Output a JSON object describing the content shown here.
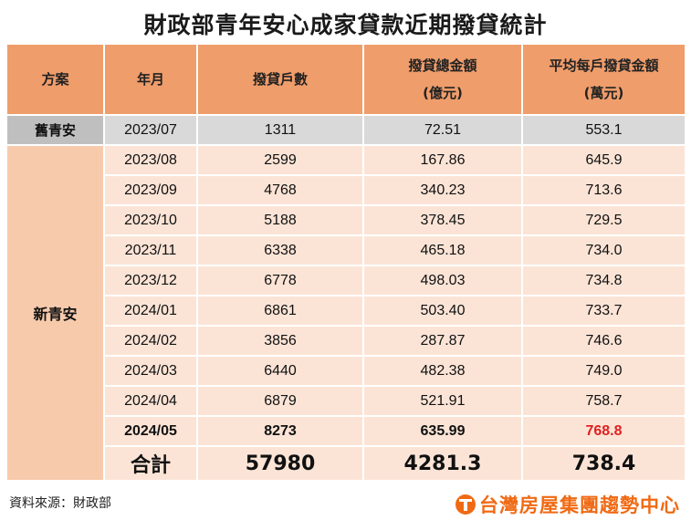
{
  "title": "財政部青年安心成家貸款近期撥貸統計",
  "table": {
    "headers": {
      "plan": "方案",
      "month": "年月",
      "households": "撥貸戶數",
      "total_amount": "撥貸總金額",
      "total_amount_unit": "(億元)",
      "avg_amount": "平均每戶撥貸金額",
      "avg_amount_unit": "(萬元)"
    },
    "old_plan": {
      "label": "舊青安",
      "row": {
        "month": "2023/07",
        "households": "1311",
        "total": "72.51",
        "avg": "553.1"
      }
    },
    "new_plan_label": "新青安",
    "rows": [
      {
        "month": "2023/08",
        "households": "2599",
        "total": "167.86",
        "avg": "645.9"
      },
      {
        "month": "2023/09",
        "households": "4768",
        "total": "340.23",
        "avg": "713.6"
      },
      {
        "month": "2023/10",
        "households": "5188",
        "total": "378.45",
        "avg": "729.5"
      },
      {
        "month": "2023/11",
        "households": "6338",
        "total": "465.18",
        "avg": "734.0"
      },
      {
        "month": "2023/12",
        "households": "6778",
        "total": "498.03",
        "avg": "734.8"
      },
      {
        "month": "2024/01",
        "households": "6861",
        "total": "503.40",
        "avg": "733.7"
      },
      {
        "month": "2024/02",
        "households": "3856",
        "total": "287.87",
        "avg": "746.6"
      },
      {
        "month": "2024/03",
        "households": "6440",
        "total": "482.38",
        "avg": "749.0"
      },
      {
        "month": "2024/04",
        "households": "6879",
        "total": "521.91",
        "avg": "758.7"
      },
      {
        "month": "2024/05",
        "households": "8273",
        "total": "635.99",
        "avg": "768.8"
      }
    ],
    "total_row": {
      "label": "合計",
      "households": "57980",
      "total": "4281.3",
      "avg": "738.4"
    }
  },
  "colors": {
    "header": "#ef9d6b",
    "new_plan_cell": "#f7caac",
    "row_bg": "#fbe4d6",
    "old_row": "#d9d9d9",
    "highlight": "#e02020",
    "brand": "#f06a14"
  },
  "footer": {
    "source": "資料來源：財政部",
    "brand": "台灣房屋集團趨勢中心",
    "brand_icon": "t-logo-icon"
  }
}
